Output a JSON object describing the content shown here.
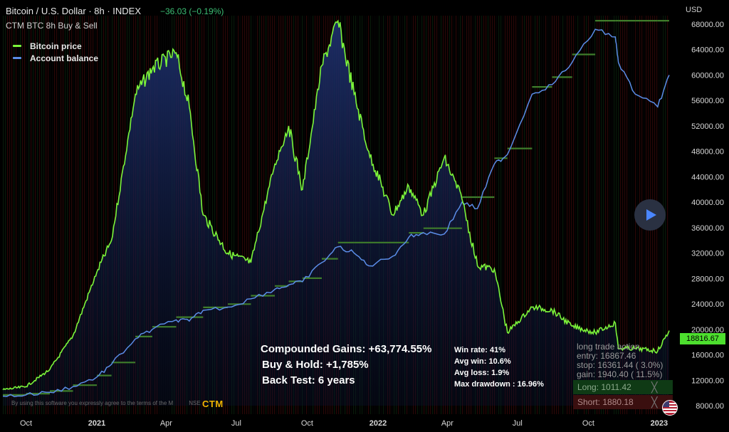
{
  "header": {
    "title": "Bitcoin / U.S. Dollar · 8h · INDEX",
    "change": "−36.03 (−0.19%)",
    "indicator": "CTM BTC 8h Buy & Sell",
    "currency": "USD"
  },
  "legend": [
    {
      "label": "Bitcoin price",
      "color": "#7cf53a"
    },
    {
      "label": "Account balance",
      "color": "#5b8de8"
    }
  ],
  "stats": {
    "compounded": "Compounded Gains:  +63,774.55%",
    "buyhold": "Buy & Hold:  +1,785%",
    "backtest": "Back Test:  6 years",
    "winrate": "Win rate:  41%",
    "avgwin": "Avg win:  10.6%",
    "avgloss": "Avg loss:  1.9%",
    "maxdd": "Max drawdown :  16.96%"
  },
  "trade": {
    "l1": "long trade action",
    "l2": "entry:  16867.46",
    "l3": "stop:   16361.44 ( 3.0%)",
    "l4": "gain:   1940.40 ( 11.5%)",
    "long": "Long:  1011.42",
    "short": "Short:  1880.18",
    "close": "╳"
  },
  "price_tag": "18816.67",
  "disclaimer": "By using this software you expressly agree to the terms of the M",
  "disclaimer_end": "NSE",
  "logo": "CTM",
  "chart_data": {
    "type": "line",
    "ylim": [
      8000,
      70000
    ],
    "y_ticks": [
      "68000.00",
      "64000.00",
      "60000.00",
      "56000.00",
      "52000.00",
      "48000.00",
      "44000.00",
      "40000.00",
      "36000.00",
      "32000.00",
      "28000.00",
      "24000.00",
      "20000.00",
      "16000.00",
      "12000.00",
      "8000.00"
    ],
    "x_ticks": [
      "Oct",
      "2021",
      "Apr",
      "Jul",
      "Oct",
      "2022",
      "Apr",
      "Jul",
      "Oct",
      "2023"
    ],
    "x": [
      "2020-09-01",
      "2020-10-01",
      "2020-11-01",
      "2020-12-01",
      "2021-01-01",
      "2021-01-20",
      "2021-02-20",
      "2021-03-14",
      "2021-04-14",
      "2021-05-01",
      "2021-05-19",
      "2021-06-20",
      "2021-07-20",
      "2021-08-20",
      "2021-09-07",
      "2021-09-25",
      "2021-10-20",
      "2021-11-10",
      "2021-12-01",
      "2021-12-20",
      "2022-01-20",
      "2022-02-10",
      "2022-03-01",
      "2022-03-28",
      "2022-04-20",
      "2022-05-10",
      "2022-06-01",
      "2022-06-18",
      "2022-07-20",
      "2022-08-15",
      "2022-09-10",
      "2022-10-10",
      "2022-11-05",
      "2022-11-09",
      "2022-12-01",
      "2022-12-30",
      "2023-01-14"
    ],
    "series": [
      {
        "name": "Bitcoin price",
        "color": "#7cf53a",
        "values": [
          10500,
          11000,
          13700,
          19000,
          29000,
          34000,
          57000,
          61000,
          63500,
          55000,
          38000,
          32000,
          30500,
          46000,
          52000,
          42000,
          61500,
          68500,
          57000,
          48000,
          38000,
          42500,
          38000,
          47000,
          40500,
          30000,
          29500,
          19500,
          23500,
          23000,
          20500,
          19500,
          21000,
          17000,
          17000,
          16600,
          19800
        ]
      },
      {
        "name": "Account balance",
        "color": "#5b8de8",
        "values": [
          9500,
          9700,
          10100,
          11000,
          12500,
          14500,
          18500,
          20000,
          21500,
          21300,
          23000,
          23500,
          24800,
          26300,
          27000,
          27500,
          30500,
          33000,
          32000,
          30000,
          31500,
          34500,
          35200,
          35000,
          40000,
          39000,
          46000,
          47500,
          57000,
          58500,
          62000,
          67200,
          66000,
          62000,
          57000,
          55000,
          60000
        ]
      }
    ]
  }
}
